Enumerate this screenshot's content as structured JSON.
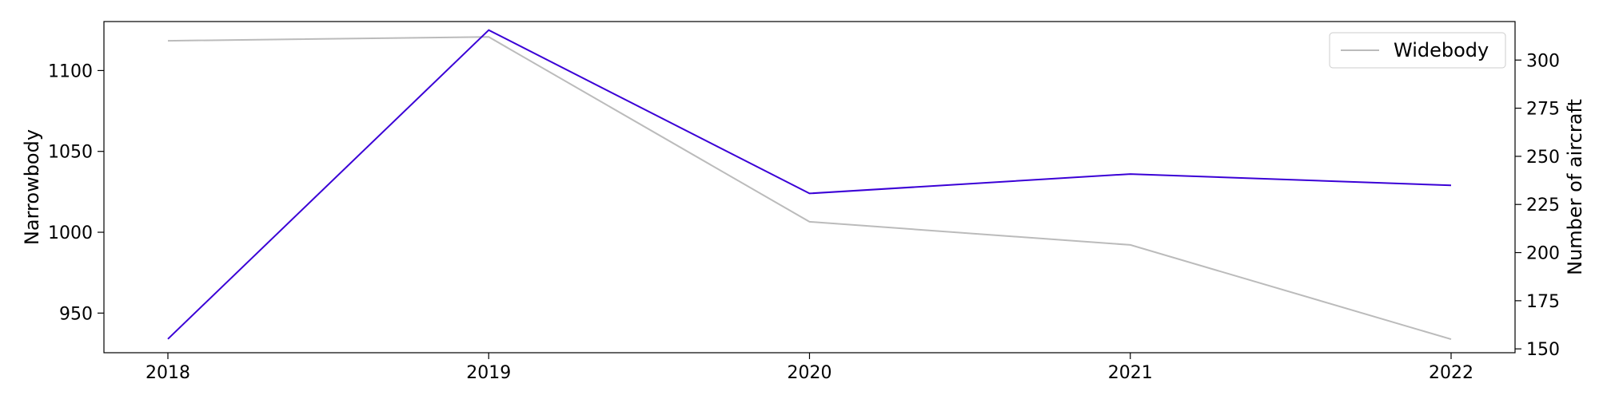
{
  "chart_data": {
    "type": "line",
    "x": [
      2018,
      2019,
      2020,
      2021,
      2022
    ],
    "x_ticks": [
      "2018",
      "2019",
      "2020",
      "2021",
      "2022"
    ],
    "series": [
      {
        "name": "",
        "axis": "left",
        "color": "#3a00d6",
        "values": [
          934,
          1125,
          1024,
          1036,
          1029
        ]
      },
      {
        "name": "Widebody",
        "axis": "right",
        "color": "#bbbbbb",
        "values": [
          310,
          312,
          216,
          204,
          155
        ]
      }
    ],
    "ylabel_left": "Narrowbody",
    "ylabel_right": "Number of aircraft",
    "ylim_left": [
      925.5,
      1130.3
    ],
    "ylim_right": [
      148,
      320
    ],
    "yticks_left": [
      950,
      1000,
      1050,
      1100
    ],
    "yticks_right": [
      150,
      175,
      200,
      225,
      250,
      275,
      300
    ],
    "legend": {
      "position": "top-right",
      "entries": [
        "Widebody"
      ]
    },
    "grid": false
  }
}
